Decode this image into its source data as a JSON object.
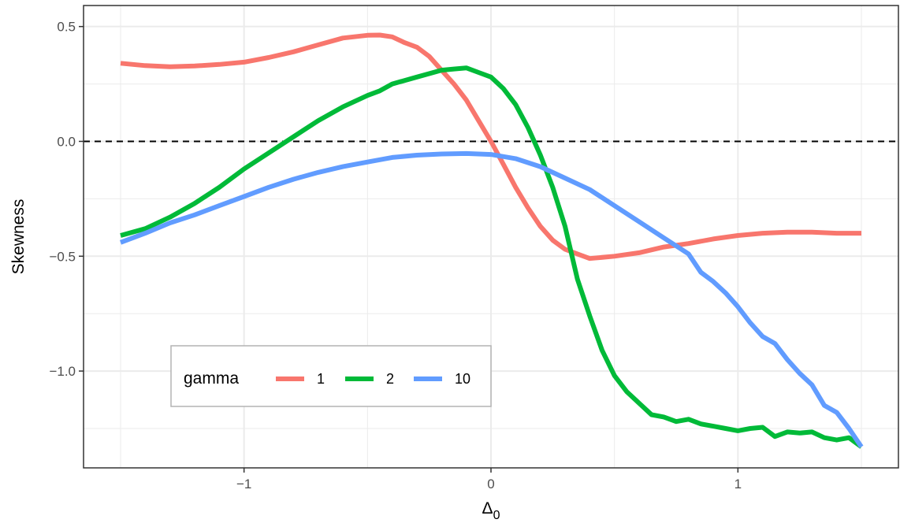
{
  "chart_data": {
    "type": "line",
    "title": "",
    "xlabel_main": "Δ",
    "xlabel_sub": "0",
    "ylabel": "Skewness",
    "xlim": [
      -1.5,
      1.5
    ],
    "ylim": [
      -1.33,
      0.5
    ],
    "x_ticks": [
      -1,
      0,
      1
    ],
    "x_tick_labels": [
      "−1",
      "0",
      "1"
    ],
    "y_ticks": [
      0.5,
      0.0,
      -0.5,
      -1.0
    ],
    "y_tick_labels": [
      "0.5",
      "0.0",
      "−0.5",
      "−1.0"
    ],
    "grid": true,
    "reference_line": {
      "y": 0,
      "style": "dashed"
    },
    "legend": {
      "title": "gamma",
      "placement": "bottom-left"
    },
    "series": [
      {
        "name": "1",
        "color": "#F8766D",
        "x": [
          -1.5,
          -1.4,
          -1.3,
          -1.2,
          -1.1,
          -1.0,
          -0.9,
          -0.8,
          -0.7,
          -0.6,
          -0.5,
          -0.45,
          -0.4,
          -0.35,
          -0.3,
          -0.25,
          -0.2,
          -0.15,
          -0.1,
          -0.05,
          0.0,
          0.05,
          0.1,
          0.15,
          0.2,
          0.25,
          0.3,
          0.35,
          0.4,
          0.5,
          0.6,
          0.7,
          0.8,
          0.9,
          1.0,
          1.1,
          1.2,
          1.3,
          1.4,
          1.5
        ],
        "y": [
          0.34,
          0.33,
          0.325,
          0.328,
          0.335,
          0.345,
          0.365,
          0.39,
          0.42,
          0.45,
          0.462,
          0.463,
          0.455,
          0.43,
          0.41,
          0.37,
          0.31,
          0.25,
          0.18,
          0.09,
          0.0,
          -0.1,
          -0.2,
          -0.29,
          -0.37,
          -0.43,
          -0.47,
          -0.49,
          -0.51,
          -0.5,
          -0.485,
          -0.46,
          -0.445,
          -0.425,
          -0.41,
          -0.4,
          -0.395,
          -0.395,
          -0.4,
          -0.4
        ]
      },
      {
        "name": "2",
        "color": "#00BA38",
        "x": [
          -1.5,
          -1.4,
          -1.3,
          -1.2,
          -1.1,
          -1.0,
          -0.9,
          -0.8,
          -0.7,
          -0.6,
          -0.5,
          -0.45,
          -0.4,
          -0.3,
          -0.2,
          -0.15,
          -0.1,
          -0.05,
          0.0,
          0.05,
          0.1,
          0.15,
          0.2,
          0.25,
          0.3,
          0.35,
          0.4,
          0.45,
          0.5,
          0.55,
          0.6,
          0.65,
          0.7,
          0.75,
          0.8,
          0.85,
          0.9,
          0.95,
          1.0,
          1.05,
          1.1,
          1.15,
          1.2,
          1.25,
          1.3,
          1.35,
          1.4,
          1.45,
          1.5
        ],
        "y": [
          -0.41,
          -0.38,
          -0.33,
          -0.27,
          -0.2,
          -0.12,
          -0.05,
          0.02,
          0.09,
          0.15,
          0.2,
          0.22,
          0.25,
          0.28,
          0.31,
          0.315,
          0.32,
          0.3,
          0.28,
          0.23,
          0.16,
          0.06,
          -0.06,
          -0.2,
          -0.37,
          -0.6,
          -0.76,
          -0.91,
          -1.02,
          -1.09,
          -1.14,
          -1.19,
          -1.2,
          -1.22,
          -1.21,
          -1.23,
          -1.24,
          -1.25,
          -1.26,
          -1.25,
          -1.245,
          -1.285,
          -1.265,
          -1.27,
          -1.265,
          -1.29,
          -1.3,
          -1.29,
          -1.33
        ]
      },
      {
        "name": "10",
        "color": "#619CFF",
        "x": [
          -1.5,
          -1.4,
          -1.3,
          -1.2,
          -1.1,
          -1.0,
          -0.9,
          -0.8,
          -0.7,
          -0.6,
          -0.5,
          -0.4,
          -0.3,
          -0.2,
          -0.1,
          0.0,
          0.1,
          0.2,
          0.3,
          0.4,
          0.5,
          0.6,
          0.7,
          0.8,
          0.85,
          0.9,
          0.95,
          1.0,
          1.05,
          1.1,
          1.15,
          1.2,
          1.25,
          1.3,
          1.35,
          1.4,
          1.45,
          1.5
        ],
        "y": [
          -0.44,
          -0.4,
          -0.355,
          -0.32,
          -0.28,
          -0.24,
          -0.2,
          -0.165,
          -0.135,
          -0.11,
          -0.09,
          -0.07,
          -0.06,
          -0.055,
          -0.053,
          -0.057,
          -0.075,
          -0.11,
          -0.16,
          -0.21,
          -0.28,
          -0.35,
          -0.42,
          -0.49,
          -0.57,
          -0.61,
          -0.66,
          -0.72,
          -0.79,
          -0.85,
          -0.88,
          -0.95,
          -1.01,
          -1.06,
          -1.15,
          -1.18,
          -1.25,
          -1.33
        ]
      }
    ]
  }
}
